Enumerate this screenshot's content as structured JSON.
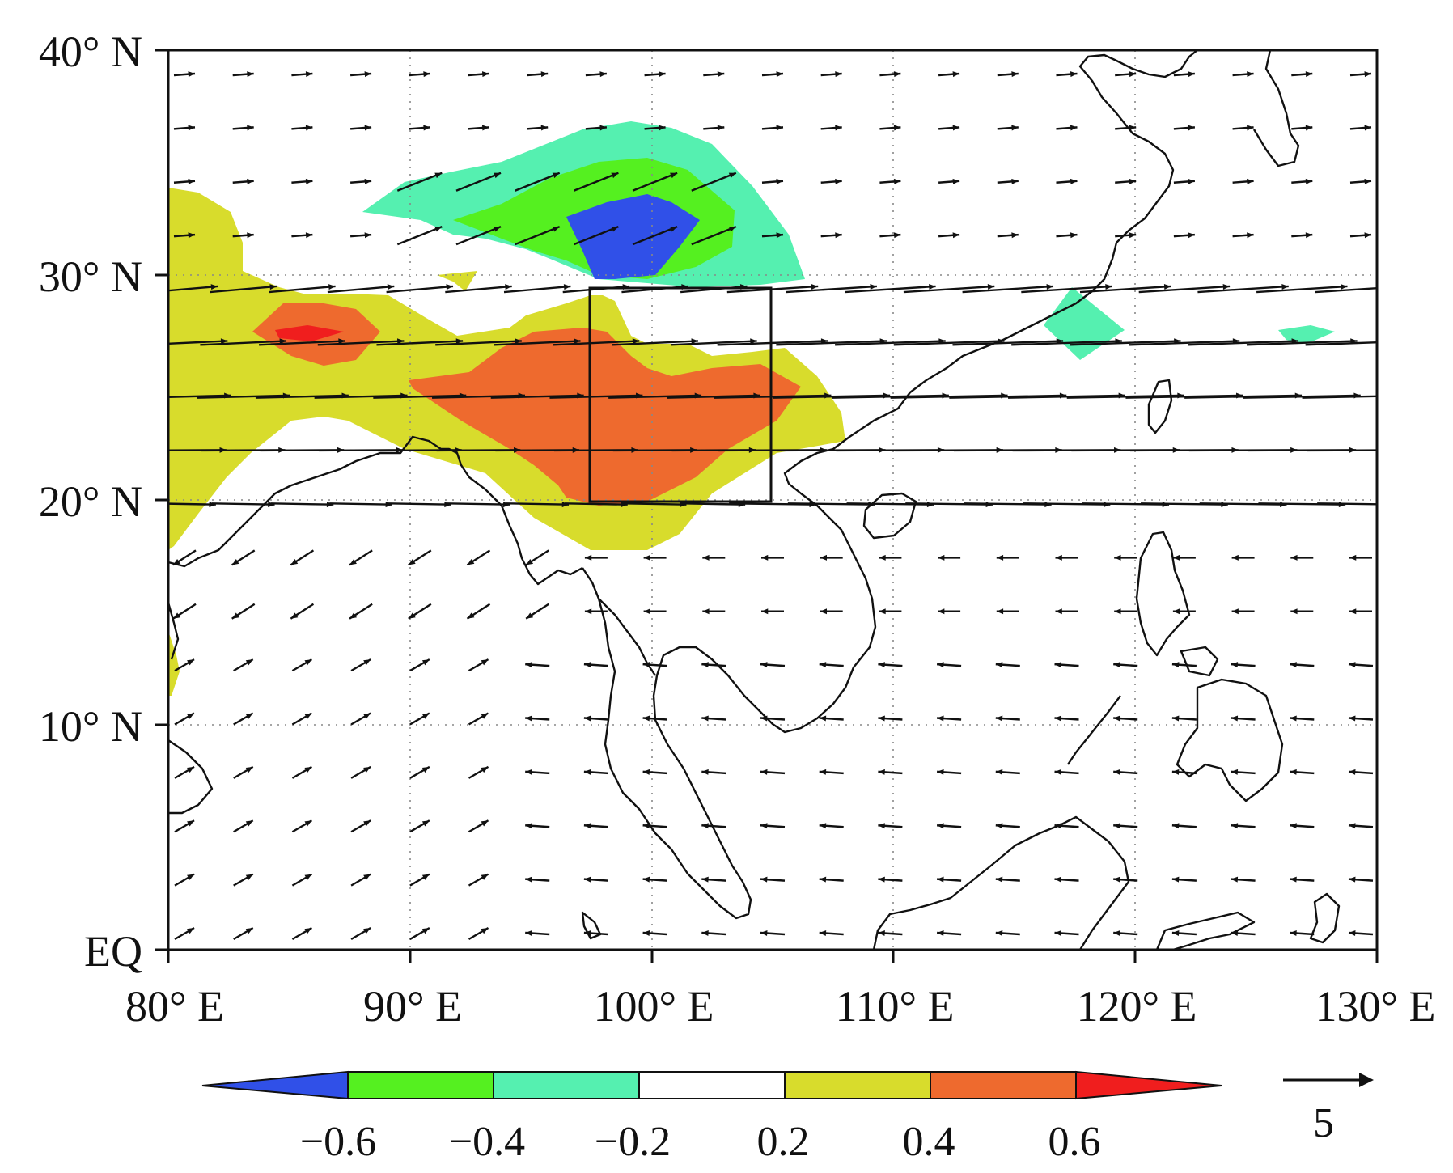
{
  "map": {
    "lat_labels": [
      "40° N",
      "30° N",
      "20° N",
      "10° N",
      "EQ"
    ],
    "lat_values": [
      40,
      30,
      20,
      10,
      0
    ],
    "lon_labels": [
      "80° E",
      "90° E",
      "100° E",
      "110° E",
      "120° E",
      "130° E"
    ],
    "lon_values": [
      80,
      90,
      100,
      110,
      120,
      130
    ],
    "extent": {
      "lon": [
        80,
        130
      ],
      "lat": [
        0,
        40
      ]
    },
    "box_region": {
      "lon": [
        97.5,
        105
      ],
      "lat": [
        20,
        29.5
      ]
    },
    "grid": true
  },
  "colorbar": {
    "labels": [
      "−0.6",
      "−0.4",
      "−0.2",
      "0.2",
      "0.4",
      "0.6"
    ],
    "colors": [
      "#3050e8",
      "#55f020",
      "#55f0b0",
      "#ffffff",
      "#d8dc2c",
      "#ee6a2e",
      "#f01e1e"
    ]
  },
  "reference_vector": {
    "label": "5",
    "magnitude": 5
  },
  "colors": {
    "blue": "#3050e8",
    "green": "#55f020",
    "cyan": "#55f0b0",
    "yellow": "#d8dc2c",
    "orange": "#ee6a2e",
    "red": "#f01e1e"
  }
}
